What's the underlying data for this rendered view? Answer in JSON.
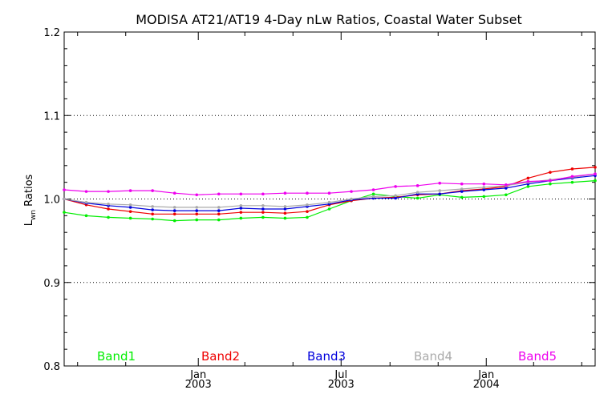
{
  "chart_data": {
    "type": "line",
    "title": "MODISA AT21/AT19 4-Day nLw Ratios, Coastal Water Subset",
    "ylabel_main": "L",
    "ylabel_sub": "wn",
    "ylabel_rest": " Ratios",
    "xlabel": "",
    "ylim": [
      0.8,
      1.2
    ],
    "yticks": [
      {
        "value": 0.8,
        "label": "0.8"
      },
      {
        "value": 0.9,
        "label": "0.9"
      },
      {
        "value": 1.0,
        "label": "1.0"
      },
      {
        "value": 1.1,
        "label": "1.1"
      },
      {
        "value": 1.2,
        "label": "1.2"
      }
    ],
    "grid": "dotted horizontal lines at 0.9, 1.0, 1.1",
    "xlim": [
      "2002-07-15",
      "2004-05-18"
    ],
    "xticks": [
      {
        "date": "2003-01-01",
        "label1": "Jan",
        "label2": "2003"
      },
      {
        "date": "2003-07-01",
        "label1": "Jul",
        "label2": "2003"
      },
      {
        "date": "2004-01-01",
        "label1": "Jan",
        "label2": "2004"
      }
    ],
    "minor_xticks": [
      "2002-08-01",
      "2002-10-01",
      "2003-03-01",
      "2003-05-01",
      "2003-09-01",
      "2003-11-01",
      "2004-03-01",
      "2004-05-01"
    ],
    "x": [
      "2002-07-15",
      "2002-08-12",
      "2002-09-09",
      "2002-10-07",
      "2002-11-04",
      "2002-12-02",
      "2002-12-30",
      "2003-01-27",
      "2003-02-24",
      "2003-03-24",
      "2003-04-21",
      "2003-05-19",
      "2003-06-16",
      "2003-07-14",
      "2003-08-11",
      "2003-09-08",
      "2003-10-06",
      "2003-11-03",
      "2003-12-01",
      "2003-12-29",
      "2004-01-26",
      "2004-02-23",
      "2004-03-22",
      "2004-04-19",
      "2004-05-18"
    ],
    "series": [
      {
        "name": "Band1",
        "color": "#00ee00",
        "values": [
          0.984,
          0.98,
          0.978,
          0.977,
          0.976,
          0.974,
          0.975,
          0.975,
          0.977,
          0.978,
          0.977,
          0.978,
          0.988,
          0.998,
          1.006,
          1.003,
          1.001,
          1.005,
          1.002,
          1.003,
          1.005,
          1.015,
          1.018,
          1.02,
          1.022
        ]
      },
      {
        "name": "Band2",
        "color": "#ee0000",
        "values": [
          1.0,
          0.993,
          0.988,
          0.985,
          0.982,
          0.982,
          0.982,
          0.982,
          0.984,
          0.984,
          0.983,
          0.985,
          0.993,
          0.998,
          1.001,
          1.002,
          1.005,
          1.006,
          1.01,
          1.012,
          1.015,
          1.025,
          1.032,
          1.036,
          1.038
        ]
      },
      {
        "name": "Band3",
        "color": "#0000dd",
        "values": [
          1.0,
          0.995,
          0.992,
          0.99,
          0.987,
          0.986,
          0.986,
          0.986,
          0.989,
          0.988,
          0.988,
          0.991,
          0.994,
          0.999,
          1.001,
          1.001,
          1.006,
          1.006,
          1.009,
          1.011,
          1.013,
          1.018,
          1.022,
          1.025,
          1.028
        ]
      },
      {
        "name": "Band4",
        "color": "#aaaaaa",
        "values": [
          1.0,
          0.996,
          0.994,
          0.993,
          0.991,
          0.99,
          0.99,
          0.99,
          0.992,
          0.992,
          0.991,
          0.993,
          0.996,
          1.0,
          1.003,
          1.004,
          1.008,
          1.01,
          1.012,
          1.014,
          1.016,
          1.02,
          1.023,
          1.026,
          1.03
        ]
      },
      {
        "name": "Band5",
        "color": "#ee00ee",
        "values": [
          1.011,
          1.009,
          1.009,
          1.01,
          1.01,
          1.007,
          1.005,
          1.006,
          1.006,
          1.006,
          1.007,
          1.007,
          1.007,
          1.009,
          1.011,
          1.015,
          1.016,
          1.019,
          1.018,
          1.018,
          1.017,
          1.021,
          1.022,
          1.027,
          1.03
        ]
      }
    ],
    "legend": "bottom, horizontal row inside plot"
  }
}
